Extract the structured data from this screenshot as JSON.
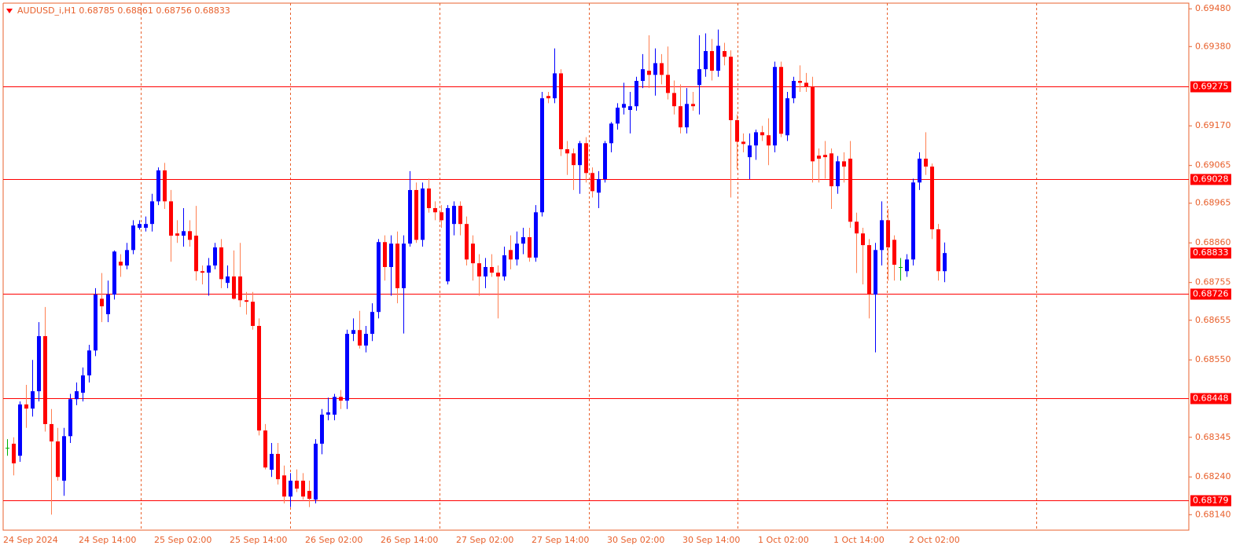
{
  "chart_data": {
    "type": "candlestick",
    "title": "AUDUSD_i,H1  0.68785 0.68861 0.68756 0.68833",
    "up_color": "#0000ff",
    "down_color": "#ff0000",
    "down_wick_color": "#ff7f50",
    "doji_color": "#00b000",
    "level_color": "#ff0000",
    "ylim": [
      0.68099,
      0.69495
    ],
    "yticks": [
      {
        "value": 0.6948,
        "label": "0.69480"
      },
      {
        "value": 0.6938,
        "label": "0.69380"
      },
      {
        "value": 0.6917,
        "label": "0.69170"
      },
      0.69065,
      0.68965,
      {
        "value": 0.6886,
        "label": "0.68860"
      },
      0.68755,
      0.68655,
      {
        "value": 0.6855,
        "label": "0.68550"
      },
      0.68345,
      {
        "value": 0.6824,
        "label": "0.68240"
      },
      {
        "value": 0.6814,
        "label": "0.68140"
      }
    ],
    "levels": [
      0.69275,
      0.69028,
      0.68726,
      0.68448,
      0.68179
    ],
    "last_price": 0.68833,
    "categories": [
      "24 Sep 2024",
      null,
      null,
      null,
      null,
      null,
      null,
      null,
      null,
      null,
      null,
      null,
      "24 Sep 14:00",
      null,
      null,
      null,
      null,
      null,
      null,
      null,
      null,
      null,
      null,
      null,
      "25 Sep 02:00",
      null,
      null,
      null,
      null,
      null,
      null,
      null,
      null,
      null,
      null,
      null,
      "25 Sep 14:00",
      null,
      null,
      null,
      null,
      null,
      null,
      null,
      null,
      null,
      null,
      null,
      "26 Sep 02:00",
      null,
      null,
      null,
      null,
      null,
      null,
      null,
      null,
      null,
      null,
      null,
      "26 Sep 14:00",
      null,
      null,
      null,
      null,
      null,
      null,
      null,
      null,
      null,
      null,
      null,
      "27 Sep 02:00",
      null,
      null,
      null,
      null,
      null,
      null,
      null,
      null,
      null,
      null,
      null,
      "27 Sep 14:00",
      null,
      null,
      null,
      null,
      null,
      null,
      null,
      null,
      null,
      null,
      null,
      "30 Sep 02:00",
      null,
      null,
      null,
      null,
      null,
      null,
      null,
      null,
      null,
      null,
      null,
      "30 Sep 14:00",
      null,
      null,
      null,
      null,
      null,
      null,
      null,
      null,
      null,
      null,
      null,
      "1 Oct 02:00",
      null,
      null,
      null,
      null,
      null,
      null,
      null,
      null,
      null,
      null,
      null,
      "1 Oct 14:00",
      null,
      null,
      null,
      null,
      null,
      null,
      null,
      null,
      null,
      null,
      null,
      "2 Oct 02:00",
      null,
      null,
      null,
      null,
      null
    ],
    "values": [
      [
        0.68317,
        0.6834,
        0.68296,
        0.68317
      ],
      [
        0.68328,
        0.68345,
        0.68244,
        0.68276
      ],
      [
        0.68296,
        0.6844,
        0.6828,
        0.68432
      ],
      [
        0.68432,
        0.68484,
        0.6837,
        0.68421
      ],
      [
        0.68421,
        0.6855,
        0.684,
        0.68467
      ],
      [
        0.68467,
        0.6865,
        0.6844,
        0.68613
      ],
      [
        0.68613,
        0.6869,
        0.6836,
        0.6838
      ],
      [
        0.6838,
        0.6842,
        0.6814,
        0.68334
      ],
      [
        0.68334,
        0.6837,
        0.6823,
        0.6824
      ],
      [
        0.6823,
        0.6837,
        0.6819,
        0.68348
      ],
      [
        0.68348,
        0.6846,
        0.6833,
        0.68446
      ],
      [
        0.68446,
        0.6849,
        0.6843,
        0.68467
      ],
      [
        0.68463,
        0.6853,
        0.6844,
        0.68509
      ],
      [
        0.68509,
        0.6859,
        0.6849,
        0.68575
      ],
      [
        0.68575,
        0.6874,
        0.6856,
        0.68723
      ],
      [
        0.68712,
        0.6878,
        0.6865,
        0.68692
      ],
      [
        0.68671,
        0.6876,
        0.6865,
        0.68723
      ],
      [
        0.68723,
        0.6884,
        0.6871,
        0.68837
      ],
      [
        0.6881,
        0.6883,
        0.6877,
        0.688
      ],
      [
        0.688,
        0.6886,
        0.6879,
        0.68841
      ],
      [
        0.68841,
        0.6892,
        0.6883,
        0.68906
      ],
      [
        0.689,
        0.6892,
        0.68895,
        0.6891
      ],
      [
        0.689,
        0.6893,
        0.6889,
        0.6891
      ],
      [
        0.6891,
        0.6899,
        0.6889,
        0.6897
      ],
      [
        0.6897,
        0.6906,
        0.6896,
        0.69052
      ],
      [
        0.69052,
        0.69072,
        0.6895,
        0.6897
      ],
      [
        0.6897,
        0.69,
        0.6881,
        0.68879
      ],
      [
        0.68885,
        0.6892,
        0.6886,
        0.68879
      ],
      [
        0.68879,
        0.68952,
        0.6885,
        0.68891
      ],
      [
        0.68891,
        0.6892,
        0.6885,
        0.68868
      ],
      [
        0.68879,
        0.68958,
        0.6876,
        0.68785
      ],
      [
        0.68785,
        0.688,
        0.6875,
        0.68781
      ],
      [
        0.68781,
        0.6882,
        0.6872,
        0.688
      ],
      [
        0.688,
        0.6886,
        0.6879,
        0.68848
      ],
      [
        0.68848,
        0.6887,
        0.6874,
        0.68764
      ],
      [
        0.68754,
        0.688,
        0.6874,
        0.68771
      ],
      [
        0.68771,
        0.6884,
        0.6871,
        0.68712
      ],
      [
        0.68771,
        0.6886,
        0.6869,
        0.68708
      ],
      [
        0.68708,
        0.6873,
        0.6867,
        0.68704
      ],
      [
        0.68704,
        0.6873,
        0.6863,
        0.6864
      ],
      [
        0.6864,
        0.6866,
        0.6835,
        0.68363
      ],
      [
        0.68363,
        0.6838,
        0.6826,
        0.68265
      ],
      [
        0.68259,
        0.6833,
        0.6824,
        0.68301
      ],
      [
        0.68301,
        0.6833,
        0.6822,
        0.68234
      ],
      [
        0.68244,
        0.6827,
        0.6817,
        0.68188
      ],
      [
        0.68188,
        0.6825,
        0.6816,
        0.6823
      ],
      [
        0.6823,
        0.6826,
        0.682,
        0.68209
      ],
      [
        0.6823,
        0.6825,
        0.6818,
        0.68188
      ],
      [
        0.68203,
        0.6823,
        0.6816,
        0.68182
      ],
      [
        0.6818,
        0.6834,
        0.6817,
        0.68328
      ],
      [
        0.68328,
        0.6842,
        0.683,
        0.68405
      ],
      [
        0.68405,
        0.6845,
        0.6839,
        0.68411
      ],
      [
        0.68405,
        0.6846,
        0.6839,
        0.68452
      ],
      [
        0.68452,
        0.6847,
        0.6842,
        0.68442
      ],
      [
        0.68442,
        0.6863,
        0.6842,
        0.68619
      ],
      [
        0.68619,
        0.6866,
        0.686,
        0.68629
      ],
      [
        0.68629,
        0.6868,
        0.6858,
        0.68588
      ],
      [
        0.68588,
        0.6864,
        0.6857,
        0.68619
      ],
      [
        0.68619,
        0.687,
        0.686,
        0.68677
      ],
      [
        0.68677,
        0.6887,
        0.6866,
        0.68862
      ],
      [
        0.68862,
        0.6888,
        0.6876,
        0.68796
      ],
      [
        0.68796,
        0.6888,
        0.6872,
        0.68858
      ],
      [
        0.68858,
        0.6889,
        0.687,
        0.6874
      ],
      [
        0.6874,
        0.6888,
        0.6862,
        0.68858
      ],
      [
        0.68858,
        0.6905,
        0.6885,
        0.69
      ],
      [
        0.69,
        0.6902,
        0.6886,
        0.68868
      ],
      [
        0.68868,
        0.6902,
        0.6885,
        0.69004
      ],
      [
        0.69004,
        0.6903,
        0.6894,
        0.68952
      ],
      [
        0.68952,
        0.6897,
        0.6892,
        0.68941
      ],
      [
        0.68941,
        0.6896,
        0.689,
        0.6892
      ],
      [
        0.68758,
        0.6896,
        0.6875,
        0.68952
      ],
      [
        0.6891,
        0.6897,
        0.6888,
        0.68958
      ],
      [
        0.68958,
        0.6897,
        0.6888,
        0.6891
      ],
      [
        0.6891,
        0.6893,
        0.688,
        0.68816
      ],
      [
        0.68858,
        0.6888,
        0.6876,
        0.68806
      ],
      [
        0.68806,
        0.6883,
        0.6872,
        0.68771
      ],
      [
        0.68771,
        0.6882,
        0.6874,
        0.68796
      ],
      [
        0.68796,
        0.6883,
        0.6877,
        0.68781
      ],
      [
        0.68781,
        0.688,
        0.6866,
        0.68771
      ],
      [
        0.68771,
        0.6885,
        0.6876,
        0.68827
      ],
      [
        0.68841,
        0.6888,
        0.6879,
        0.68816
      ],
      [
        0.68816,
        0.6889,
        0.688,
        0.68858
      ],
      [
        0.68858,
        0.689,
        0.6883,
        0.68875
      ],
      [
        0.68875,
        0.689,
        0.6881,
        0.68821
      ],
      [
        0.68821,
        0.6896,
        0.6881,
        0.68941
      ],
      [
        0.68941,
        0.6926,
        0.6893,
        0.69243
      ],
      [
        0.69249,
        0.6926,
        0.6923,
        0.69243
      ],
      [
        0.69243,
        0.69375,
        0.6923,
        0.69309
      ],
      [
        0.69309,
        0.6932,
        0.6909,
        0.69108
      ],
      [
        0.69108,
        0.6913,
        0.6904,
        0.69097
      ],
      [
        0.69097,
        0.6911,
        0.69,
        0.69066
      ],
      [
        0.69066,
        0.6913,
        0.6899,
        0.69124
      ],
      [
        0.69124,
        0.6914,
        0.6902,
        0.69045
      ],
      [
        0.69045,
        0.6906,
        0.6898,
        0.68997
      ],
      [
        0.68993,
        0.6905,
        0.68952,
        0.69029
      ],
      [
        0.69029,
        0.6913,
        0.6902,
        0.69124
      ],
      [
        0.69124,
        0.6918,
        0.691,
        0.69176
      ],
      [
        0.69176,
        0.6923,
        0.6916,
        0.69218
      ],
      [
        0.69218,
        0.69284,
        0.692,
        0.69228
      ],
      [
        0.69212,
        0.6926,
        0.6915,
        0.69222
      ],
      [
        0.69222,
        0.693,
        0.6921,
        0.69289
      ],
      [
        0.69289,
        0.6936,
        0.6927,
        0.6932
      ],
      [
        0.69316,
        0.6941,
        0.6927,
        0.69305
      ],
      [
        0.69305,
        0.69375,
        0.6925,
        0.69336
      ],
      [
        0.69336,
        0.6936,
        0.6928,
        0.69305
      ],
      [
        0.69305,
        0.6938,
        0.6924,
        0.69257
      ],
      [
        0.69257,
        0.6929,
        0.692,
        0.69222
      ],
      [
        0.69222,
        0.6928,
        0.6915,
        0.69166
      ],
      [
        0.69166,
        0.6927,
        0.6915,
        0.69228
      ],
      [
        0.69228,
        0.6926,
        0.6921,
        0.69222
      ],
      [
        0.69278,
        0.6941,
        0.692,
        0.6932
      ],
      [
        0.6932,
        0.69415,
        0.693,
        0.69368
      ],
      [
        0.69368,
        0.694,
        0.6929,
        0.69316
      ],
      [
        0.69316,
        0.69425,
        0.693,
        0.69382
      ],
      [
        0.69368,
        0.6939,
        0.6933,
        0.69353
      ],
      [
        0.69353,
        0.6937,
        0.6898,
        0.69185
      ],
      [
        0.69185,
        0.692,
        0.69055,
        0.69128
      ],
      [
        0.69128,
        0.6915,
        0.691,
        0.69122
      ],
      [
        0.69087,
        0.6915,
        0.69029,
        0.69118
      ],
      [
        0.69118,
        0.6916,
        0.6908,
        0.69153
      ],
      [
        0.69153,
        0.6917,
        0.6913,
        0.69145
      ],
      [
        0.69145,
        0.6919,
        0.69066,
        0.69118
      ],
      [
        0.69118,
        0.6934,
        0.691,
        0.69326
      ],
      [
        0.69326,
        0.6934,
        0.6914,
        0.69149
      ],
      [
        0.69145,
        0.6926,
        0.6913,
        0.69243
      ],
      [
        0.69243,
        0.693,
        0.6923,
        0.69289
      ],
      [
        0.69289,
        0.6933,
        0.6926,
        0.69284
      ],
      [
        0.69284,
        0.6931,
        0.6926,
        0.69274
      ],
      [
        0.69274,
        0.693,
        0.6902,
        0.69076
      ],
      [
        0.69091,
        0.6911,
        0.6902,
        0.69083
      ],
      [
        0.69093,
        0.6913,
        0.6903,
        0.69087
      ],
      [
        0.69097,
        0.6911,
        0.6895,
        0.6901
      ],
      [
        0.6901,
        0.6909,
        0.6899,
        0.69076
      ],
      [
        0.69076,
        0.691,
        0.6902,
        0.69062
      ],
      [
        0.69083,
        0.6913,
        0.689,
        0.68916
      ],
      [
        0.68916,
        0.6894,
        0.6878,
        0.68885
      ],
      [
        0.68885,
        0.689,
        0.6875,
        0.68854
      ],
      [
        0.68854,
        0.6887,
        0.6866,
        0.68723
      ],
      [
        0.68723,
        0.6886,
        0.6857,
        0.68841
      ],
      [
        0.68841,
        0.6897,
        0.688,
        0.6892
      ],
      [
        0.6892,
        0.6895,
        0.6876,
        0.68848
      ],
      [
        0.68868,
        0.6888,
        0.6876,
        0.68802
      ],
      [
        0.68796,
        0.6882,
        0.6876,
        0.68796
      ],
      [
        0.68785,
        0.6883,
        0.6877,
        0.68816
      ],
      [
        0.68816,
        0.6903,
        0.688,
        0.6902
      ],
      [
        0.6902,
        0.691,
        0.69,
        0.69083
      ],
      [
        0.69083,
        0.69153,
        0.6904,
        0.69062
      ],
      [
        0.69062,
        0.6907,
        0.6887,
        0.68896
      ],
      [
        0.68896,
        0.6891,
        0.6876,
        0.68785
      ],
      [
        0.68785,
        0.68861,
        0.68756,
        0.68833
      ]
    ]
  }
}
